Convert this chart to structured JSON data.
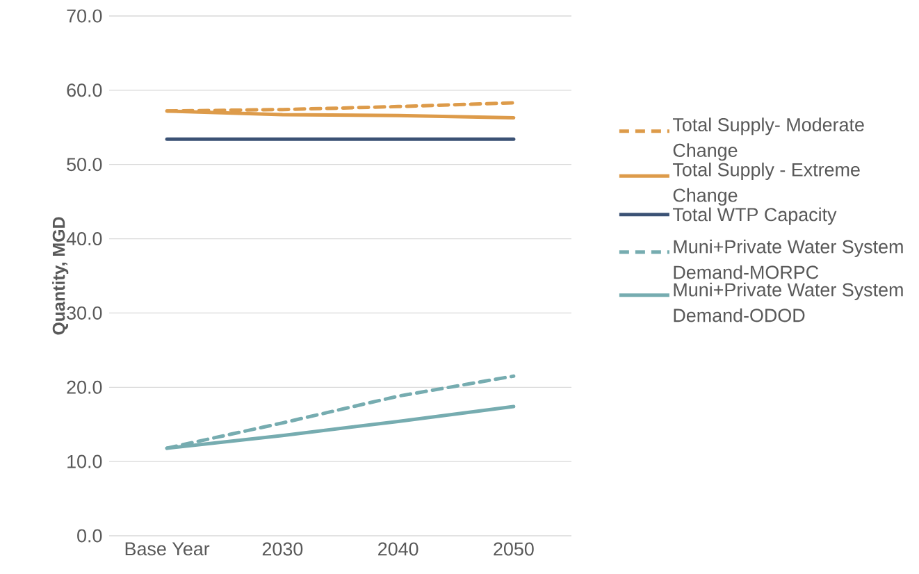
{
  "chart_data": {
    "type": "line",
    "ylabel": "Quantity, MGD",
    "categories": [
      "Base Year",
      "2030",
      "2040",
      "2050"
    ],
    "series": [
      {
        "name": "Total Supply- Moderate Change",
        "color": "#dd9b4a",
        "line_style": "dashed",
        "values": [
          57.2,
          57.4,
          57.8,
          58.3
        ]
      },
      {
        "name": "Total Supply - Extreme Change",
        "color": "#dd9b4a",
        "line_style": "solid",
        "values": [
          57.2,
          56.7,
          56.6,
          56.3
        ]
      },
      {
        "name": "Total WTP Capacity",
        "color": "#3b5275",
        "line_style": "solid",
        "values": [
          53.4,
          53.4,
          53.4,
          53.4
        ]
      },
      {
        "name": "Muni+Private Water System Demand-MORPC",
        "color": "#76acb0",
        "line_style": "dashed",
        "values": [
          11.8,
          15.2,
          18.8,
          21.5
        ]
      },
      {
        "name": "Muni+Private Water System Demand-ODOD",
        "color": "#76acb0",
        "line_style": "solid",
        "values": [
          11.8,
          13.5,
          15.4,
          17.4
        ]
      }
    ],
    "ylim": [
      0,
      70
    ],
    "yticks": [
      {
        "value": 0,
        "label": "0.0"
      },
      {
        "value": 10,
        "label": "10.0"
      },
      {
        "value": 20,
        "label": "20.0"
      },
      {
        "value": 30,
        "label": "30.0"
      },
      {
        "value": 40,
        "label": "40.0"
      },
      {
        "value": 50,
        "label": "50.0"
      },
      {
        "value": 60,
        "label": "60.0"
      },
      {
        "value": 70,
        "label": "70.0"
      }
    ],
    "grid": "y",
    "legend": "right",
    "marker": "none"
  }
}
